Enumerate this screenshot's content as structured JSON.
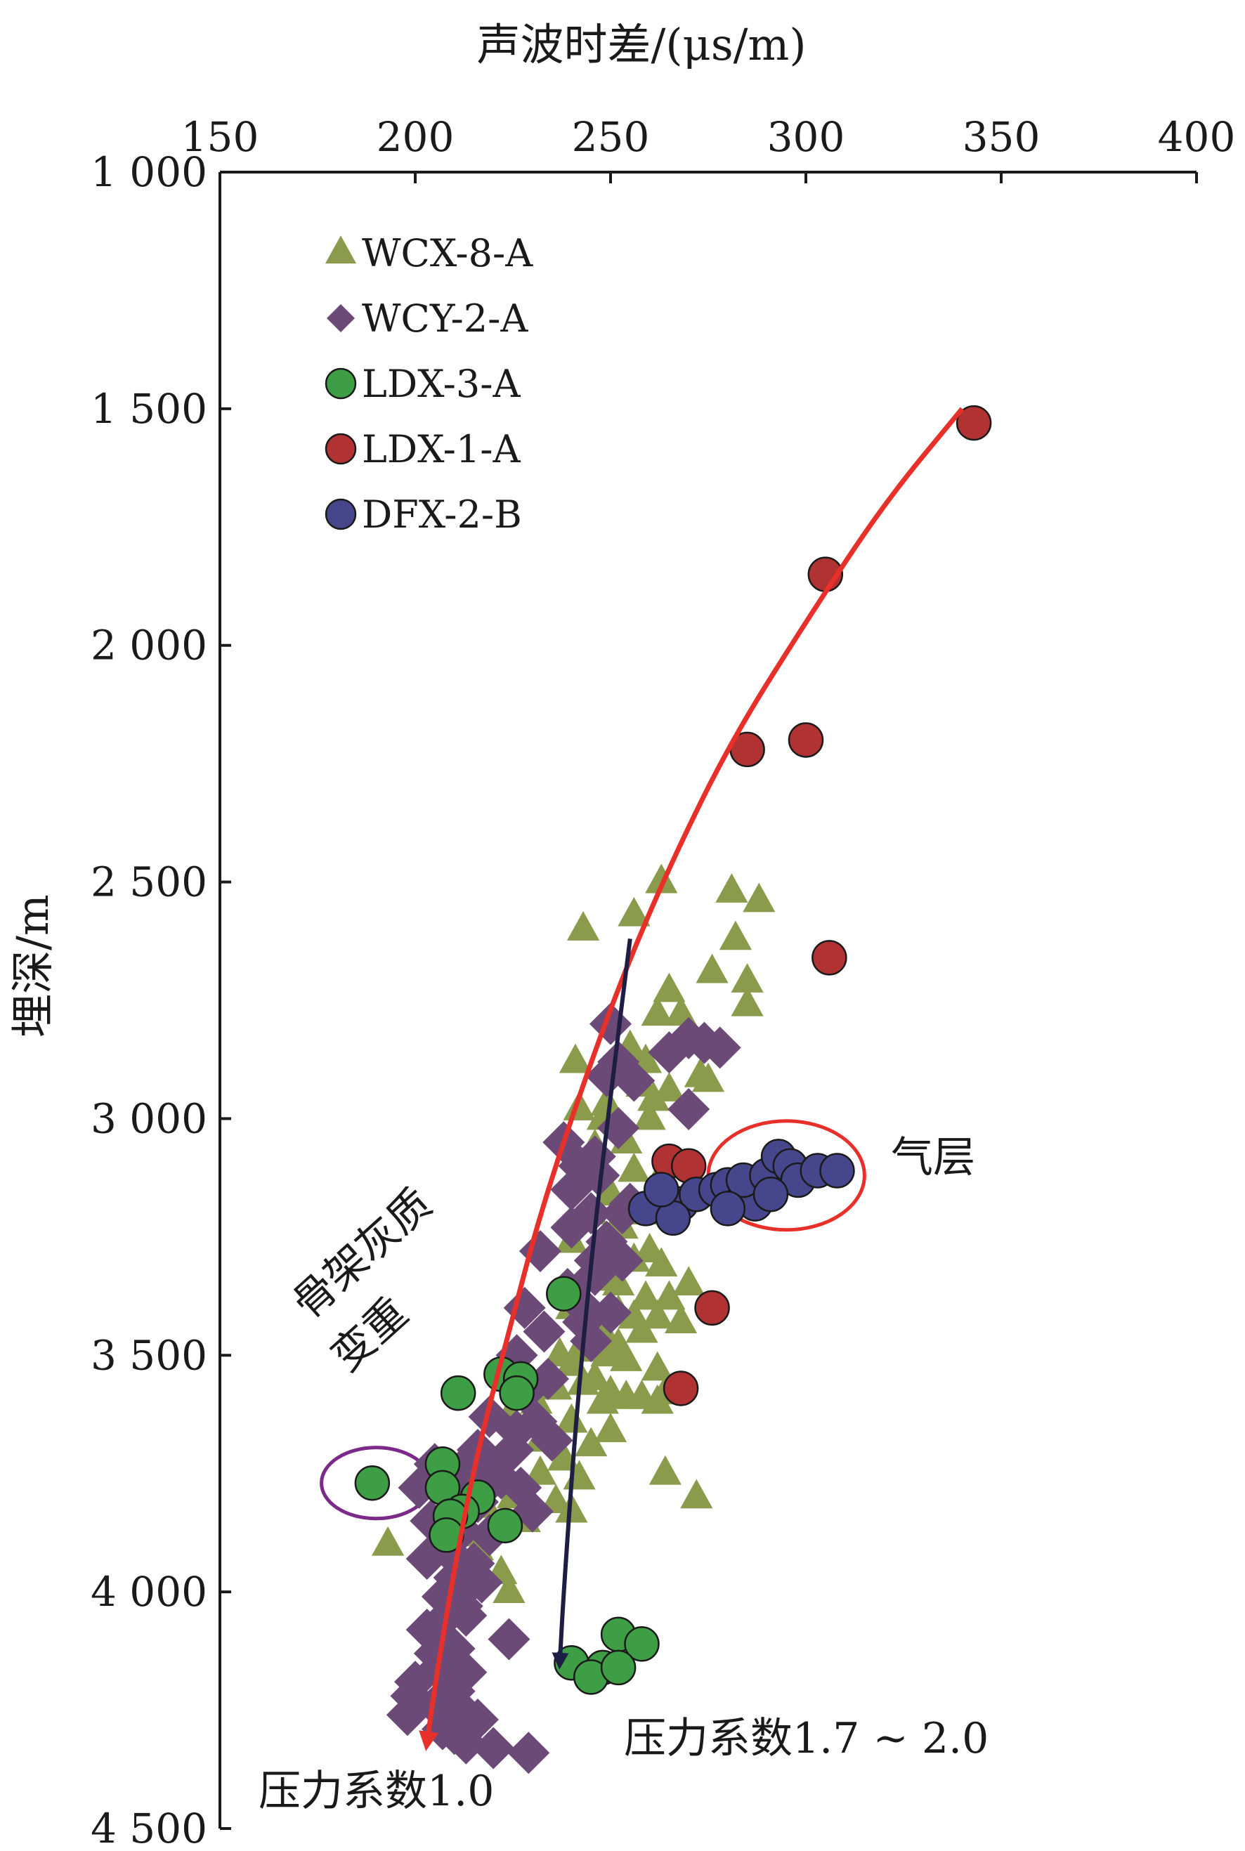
{
  "chart_data": {
    "type": "scatter",
    "title": "",
    "xlabel": "声波时差/(μs/m)",
    "ylabel": "埋深/m",
    "x_axis_position": "top",
    "y_axis_inverted": true,
    "xlim": [
      150,
      400
    ],
    "ylim": [
      1000,
      4500
    ],
    "xticks": [
      150,
      200,
      250,
      300,
      350,
      400
    ],
    "yticks": [
      1000,
      1500,
      2000,
      2500,
      3000,
      3500,
      4000,
      4500
    ],
    "xtick_labels": [
      "150",
      "200",
      "250",
      "300",
      "350",
      "400"
    ],
    "ytick_labels": [
      "1 000",
      "1 500",
      "2 000",
      "2 500",
      "3 000",
      "3 500",
      "4 000",
      "4 500"
    ],
    "grid": false,
    "legend_placement": "top-left",
    "series": [
      {
        "name": "WCX-8-A",
        "marker": "triangle",
        "color": "#8a9b4b",
        "points": [
          [
            263,
            2500
          ],
          [
            281,
            2520
          ],
          [
            288,
            2540
          ],
          [
            256,
            2570
          ],
          [
            243,
            2600
          ],
          [
            282,
            2620
          ],
          [
            276,
            2690
          ],
          [
            265,
            2730
          ],
          [
            285,
            2710
          ],
          [
            285,
            2760
          ],
          [
            268,
            2780
          ],
          [
            262,
            2780
          ],
          [
            270,
            2830
          ],
          [
            255,
            2850
          ],
          [
            241,
            2880
          ],
          [
            259,
            2880
          ],
          [
            252,
            2900
          ],
          [
            273,
            2910
          ],
          [
            275,
            2920
          ],
          [
            258,
            2930
          ],
          [
            265,
            2940
          ],
          [
            249,
            2970
          ],
          [
            261,
            2960
          ],
          [
            242,
            2980
          ],
          [
            248,
            3000
          ],
          [
            260,
            3000
          ],
          [
            254,
            3050
          ],
          [
            246,
            3060
          ],
          [
            256,
            3110
          ],
          [
            263,
            3120
          ],
          [
            250,
            3160
          ],
          [
            245,
            3200
          ],
          [
            258,
            3200
          ],
          [
            253,
            3230
          ],
          [
            240,
            3260
          ],
          [
            250,
            3250
          ],
          [
            260,
            3280
          ],
          [
            256,
            3300
          ],
          [
            263,
            3310
          ],
          [
            248,
            3340
          ],
          [
            252,
            3350
          ],
          [
            270,
            3350
          ],
          [
            259,
            3380
          ],
          [
            265,
            3380
          ],
          [
            240,
            3400
          ],
          [
            252,
            3410
          ],
          [
            256,
            3420
          ],
          [
            262,
            3420
          ],
          [
            248,
            3450
          ],
          [
            268,
            3430
          ],
          [
            258,
            3450
          ],
          [
            252,
            3480
          ],
          [
            242,
            3490
          ],
          [
            237,
            3500
          ],
          [
            249,
            3500
          ],
          [
            240,
            3520
          ],
          [
            254,
            3510
          ],
          [
            262,
            3530
          ],
          [
            246,
            3550
          ],
          [
            243,
            3560
          ],
          [
            236,
            3570
          ],
          [
            250,
            3580
          ],
          [
            258,
            3590
          ],
          [
            264,
            3580
          ],
          [
            254,
            3590
          ],
          [
            248,
            3600
          ],
          [
            262,
            3600
          ],
          [
            231,
            3600
          ],
          [
            224,
            3630
          ],
          [
            240,
            3640
          ],
          [
            250,
            3660
          ],
          [
            232,
            3680
          ],
          [
            245,
            3690
          ],
          [
            238,
            3720
          ],
          [
            232,
            3750
          ],
          [
            264,
            3750
          ],
          [
            242,
            3760
          ],
          [
            272,
            3800
          ],
          [
            225,
            3800
          ],
          [
            236,
            3810
          ],
          [
            218,
            3820
          ],
          [
            240,
            3830
          ],
          [
            228,
            3850
          ],
          [
            212,
            3880
          ],
          [
            193,
            3900
          ],
          [
            216,
            3910
          ],
          [
            222,
            3960
          ],
          [
            224,
            4000
          ]
        ]
      },
      {
        "name": "WCY-2-A",
        "marker": "diamond",
        "color": "#6b4a78",
        "points": [
          [
            250,
            2800
          ],
          [
            270,
            2830
          ],
          [
            274,
            2840
          ],
          [
            278,
            2850
          ],
          [
            265,
            2860
          ],
          [
            252,
            2880
          ],
          [
            249,
            2910
          ],
          [
            256,
            2920
          ],
          [
            270,
            2980
          ],
          [
            252,
            3020
          ],
          [
            238,
            3050
          ],
          [
            246,
            3080
          ],
          [
            242,
            3100
          ],
          [
            247,
            3120
          ],
          [
            240,
            3150
          ],
          [
            255,
            3180
          ],
          [
            245,
            3200
          ],
          [
            253,
            3200
          ],
          [
            240,
            3230
          ],
          [
            249,
            3260
          ],
          [
            232,
            3280
          ],
          [
            246,
            3300
          ],
          [
            253,
            3300
          ],
          [
            246,
            3330
          ],
          [
            239,
            3360
          ],
          [
            242,
            3390
          ],
          [
            228,
            3400
          ],
          [
            250,
            3410
          ],
          [
            243,
            3430
          ],
          [
            233,
            3450
          ],
          [
            245,
            3470
          ],
          [
            226,
            3500
          ],
          [
            234,
            3550
          ],
          [
            228,
            3580
          ],
          [
            219,
            3630
          ],
          [
            231,
            3640
          ],
          [
            226,
            3660
          ],
          [
            235,
            3680
          ],
          [
            216,
            3700
          ],
          [
            225,
            3700
          ],
          [
            218,
            3720
          ],
          [
            205,
            3730
          ],
          [
            212,
            3740
          ],
          [
            222,
            3760
          ],
          [
            219,
            3770
          ],
          [
            227,
            3780
          ],
          [
            201,
            3780
          ],
          [
            210,
            3790
          ],
          [
            216,
            3810
          ],
          [
            230,
            3830
          ],
          [
            204,
            3850
          ],
          [
            212,
            3870
          ],
          [
            219,
            3880
          ],
          [
            208,
            3910
          ],
          [
            203,
            3930
          ],
          [
            215,
            3940
          ],
          [
            210,
            3970
          ],
          [
            217,
            3980
          ],
          [
            212,
            4000
          ],
          [
            207,
            4010
          ],
          [
            212,
            4030
          ],
          [
            213,
            4050
          ],
          [
            207,
            4060
          ],
          [
            203,
            4080
          ],
          [
            224,
            4100
          ],
          [
            210,
            4120
          ],
          [
            205,
            4130
          ],
          [
            206,
            4160
          ],
          [
            213,
            4170
          ],
          [
            200,
            4190
          ],
          [
            210,
            4210
          ],
          [
            199,
            4220
          ],
          [
            205,
            4240
          ],
          [
            212,
            4250
          ],
          [
            198,
            4260
          ],
          [
            216,
            4270
          ],
          [
            207,
            4290
          ],
          [
            210,
            4300
          ],
          [
            213,
            4320
          ],
          [
            220,
            4330
          ],
          [
            229,
            4340
          ]
        ]
      },
      {
        "name": "LDX-3-A",
        "marker": "circle",
        "color": "#3d9e45",
        "points": [
          [
            238,
            3370
          ],
          [
            222,
            3540
          ],
          [
            227,
            3550
          ],
          [
            211,
            3580
          ],
          [
            226,
            3580
          ],
          [
            207,
            3730
          ],
          [
            189,
            3770
          ],
          [
            207,
            3780
          ],
          [
            216,
            3800
          ],
          [
            212,
            3830
          ],
          [
            209,
            3840
          ],
          [
            223,
            3860
          ],
          [
            208,
            3880
          ],
          [
            252,
            4090
          ],
          [
            258,
            4110
          ],
          [
            240,
            4150
          ],
          [
            248,
            4160
          ],
          [
            245,
            4180
          ],
          [
            252,
            4160
          ]
        ]
      },
      {
        "name": "LDX-1-A",
        "marker": "circle",
        "color": "#b03232",
        "points": [
          [
            343,
            1530
          ],
          [
            305,
            1850
          ],
          [
            300,
            2200
          ],
          [
            285,
            2220
          ],
          [
            306,
            2660
          ],
          [
            265,
            3090
          ],
          [
            270,
            3100
          ],
          [
            276,
            3400
          ],
          [
            268,
            3570
          ]
        ]
      },
      {
        "name": "DFX-2-B",
        "marker": "circle",
        "color": "#46468c",
        "points": [
          [
            259,
            3190
          ],
          [
            268,
            3180
          ],
          [
            272,
            3160
          ],
          [
            277,
            3150
          ],
          [
            280,
            3140
          ],
          [
            284,
            3170
          ],
          [
            287,
            3180
          ],
          [
            284,
            3130
          ],
          [
            290,
            3120
          ],
          [
            293,
            3080
          ],
          [
            296,
            3100
          ],
          [
            298,
            3130
          ],
          [
            303,
            3110
          ],
          [
            308,
            3110
          ],
          [
            291,
            3160
          ],
          [
            280,
            3190
          ],
          [
            266,
            3210
          ],
          [
            263,
            3150
          ]
        ]
      }
    ],
    "annotations": [
      {
        "text": "气层",
        "color": "#1a1a1a"
      },
      {
        "text": "骨架灰质",
        "color": "#1a1a1a"
      },
      {
        "text": "变重",
        "color": "#1a1a1a"
      },
      {
        "text": "压力系数1.7 ~ 2.0",
        "color": "#1a1a1a"
      },
      {
        "text": "压力系数1.0",
        "color": "#1a1a1a"
      }
    ],
    "trend_curves": [
      {
        "color": "#e8302a",
        "points": [
          [
            340,
            1500
          ],
          [
            320,
            1700
          ],
          [
            300,
            1950
          ],
          [
            281,
            2200
          ],
          [
            266,
            2450
          ],
          [
            253,
            2700
          ],
          [
            242,
            2950
          ],
          [
            232,
            3200
          ],
          [
            224,
            3450
          ],
          [
            216,
            3700
          ],
          [
            210,
            3950
          ],
          [
            205,
            4200
          ],
          [
            203,
            4320
          ]
        ]
      },
      {
        "color": "#1e1d44",
        "points": [
          [
            255,
            2620
          ],
          [
            250,
            2950
          ],
          [
            245,
            3300
          ],
          [
            241,
            3650
          ],
          [
            238,
            4000
          ],
          [
            237,
            4150
          ]
        ]
      }
    ],
    "highlight_ellipses": [
      {
        "color": "#e8302a",
        "center": [
          295,
          3120
        ],
        "rx_data": 20,
        "ry_data": 115
      },
      {
        "color": "#7b2a8a",
        "center": [
          190,
          3770
        ],
        "rx_data": 14,
        "ry_data": 75
      }
    ]
  }
}
